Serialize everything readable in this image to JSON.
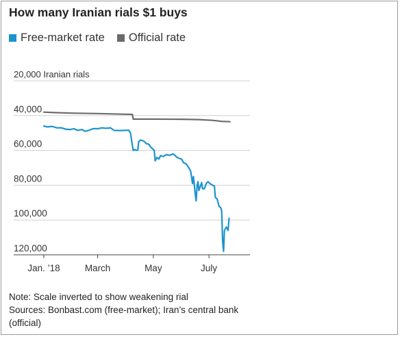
{
  "title": "How many Iranian rials $1 buys",
  "colors": {
    "free_market": "#1b93cf",
    "official": "#6b6b6b",
    "grid": "#d0d0d0",
    "axis": "#444444",
    "text": "#333333"
  },
  "legend": [
    {
      "label": "Free-market rate",
      "color": "#1b93cf"
    },
    {
      "label": "Official rate",
      "color": "#6b6b6b"
    }
  ],
  "notes": {
    "note": "Note: Scale inverted to show weakening rial",
    "sources": "Sources: Bonbast.com (free-market); Iran’s central bank (official)"
  },
  "chart_data": {
    "type": "line",
    "y_inverted": true,
    "ylim": [
      20000,
      120000
    ],
    "xlim": [
      "2018-01-01",
      "2018-08-15"
    ],
    "yticks": [
      {
        "value": 20000,
        "label": "20,000 Iranian rials"
      },
      {
        "value": 40000,
        "label": "40,000"
      },
      {
        "value": 60000,
        "label": "60,000"
      },
      {
        "value": 80000,
        "label": "80,000"
      },
      {
        "value": 100000,
        "label": "100,000"
      },
      {
        "value": 120000,
        "label": "120,000"
      }
    ],
    "xticks": [
      {
        "date": "2018-01-01",
        "label": "Jan. ’18"
      },
      {
        "date": "2018-03-01",
        "label": "March"
      },
      {
        "date": "2018-05-01",
        "label": "May"
      },
      {
        "date": "2018-07-01",
        "label": "July"
      }
    ],
    "series": [
      {
        "name": "Free-market rate",
        "color": "#1b93cf",
        "points": [
          [
            "2018-01-01",
            46000
          ],
          [
            "2018-01-05",
            46500
          ],
          [
            "2018-01-10",
            46200
          ],
          [
            "2018-01-15",
            47000
          ],
          [
            "2018-01-20",
            47000
          ],
          [
            "2018-01-25",
            47800
          ],
          [
            "2018-01-30",
            48000
          ],
          [
            "2018-02-03",
            47500
          ],
          [
            "2018-02-07",
            48500
          ],
          [
            "2018-02-12",
            48000
          ],
          [
            "2018-02-15",
            49000
          ],
          [
            "2018-02-19",
            48500
          ],
          [
            "2018-02-24",
            47500
          ],
          [
            "2018-03-01",
            47500
          ],
          [
            "2018-03-06",
            47000
          ],
          [
            "2018-03-10",
            47300
          ],
          [
            "2018-03-15",
            47000
          ],
          [
            "2018-03-19",
            48500
          ],
          [
            "2018-03-25",
            48600
          ],
          [
            "2018-03-30",
            48500
          ],
          [
            "2018-04-04",
            48400
          ],
          [
            "2018-04-06",
            50000
          ],
          [
            "2018-04-08",
            57000
          ],
          [
            "2018-04-09",
            60000
          ],
          [
            "2018-04-11",
            59500
          ],
          [
            "2018-04-12",
            60000
          ],
          [
            "2018-04-14",
            59800
          ],
          [
            "2018-04-15",
            55000
          ],
          [
            "2018-04-17",
            54000
          ],
          [
            "2018-04-21",
            54800
          ],
          [
            "2018-04-23",
            56000
          ],
          [
            "2018-04-26",
            56500
          ],
          [
            "2018-04-28",
            58000
          ],
          [
            "2018-04-30",
            59000
          ],
          [
            "2018-05-02",
            60000
          ],
          [
            "2018-05-03",
            66000
          ],
          [
            "2018-05-05",
            64000
          ],
          [
            "2018-05-07",
            65000
          ],
          [
            "2018-05-09",
            63000
          ],
          [
            "2018-05-12",
            63500
          ],
          [
            "2018-05-15",
            62500
          ],
          [
            "2018-05-19",
            62800
          ],
          [
            "2018-05-23",
            62000
          ],
          [
            "2018-05-27",
            64000
          ],
          [
            "2018-05-29",
            64500
          ],
          [
            "2018-06-01",
            65000
          ],
          [
            "2018-06-03",
            67000
          ],
          [
            "2018-06-06",
            67800
          ],
          [
            "2018-06-09",
            70000
          ],
          [
            "2018-06-11",
            72000
          ],
          [
            "2018-06-13",
            79000
          ],
          [
            "2018-06-14",
            75000
          ],
          [
            "2018-06-16",
            85000
          ],
          [
            "2018-06-17",
            89000
          ],
          [
            "2018-06-18",
            80000
          ],
          [
            "2018-06-19",
            78000
          ],
          [
            "2018-06-20",
            83000
          ],
          [
            "2018-06-22",
            80000
          ],
          [
            "2018-06-23",
            78500
          ],
          [
            "2018-06-24",
            82000
          ],
          [
            "2018-06-26",
            82000
          ],
          [
            "2018-06-28",
            79000
          ],
          [
            "2018-06-30",
            78000
          ],
          [
            "2018-07-02",
            79000
          ],
          [
            "2018-07-05",
            80000
          ],
          [
            "2018-07-07",
            80500
          ],
          [
            "2018-07-08",
            87000
          ],
          [
            "2018-07-10",
            88000
          ],
          [
            "2018-07-12",
            92000
          ],
          [
            "2018-07-14",
            93000
          ],
          [
            "2018-07-15",
            95000
          ],
          [
            "2018-07-16",
            112000
          ],
          [
            "2018-07-17",
            118000
          ],
          [
            "2018-07-18",
            106000
          ],
          [
            "2018-07-20",
            104000
          ],
          [
            "2018-07-22",
            106000
          ],
          [
            "2018-07-23",
            99000
          ]
        ]
      },
      {
        "name": "Official rate",
        "color": "#6b6b6b",
        "points": [
          [
            "2018-01-01",
            38000
          ],
          [
            "2018-01-15",
            38300
          ],
          [
            "2018-02-01",
            38600
          ],
          [
            "2018-03-01",
            38800
          ],
          [
            "2018-04-01",
            39200
          ],
          [
            "2018-04-08",
            39300
          ],
          [
            "2018-04-09",
            42000
          ],
          [
            "2018-05-01",
            42000
          ],
          [
            "2018-06-01",
            42100
          ],
          [
            "2018-06-20",
            42300
          ],
          [
            "2018-07-05",
            42700
          ],
          [
            "2018-07-15",
            43300
          ],
          [
            "2018-07-24",
            43500
          ]
        ]
      }
    ]
  }
}
